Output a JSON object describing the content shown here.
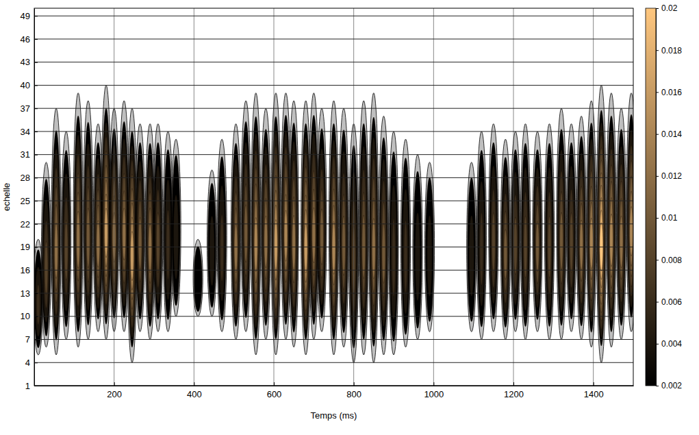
{
  "chart_data": {
    "type": "scalogram",
    "x_label": "Temps (ms)",
    "y_label": "echelle",
    "xlim": [
      0,
      1500
    ],
    "xticks": [
      200,
      400,
      600,
      800,
      1000,
      1200,
      1400
    ],
    "ylim": [
      1,
      50
    ],
    "yticks": [
      1,
      4,
      7,
      10,
      13,
      16,
      19,
      22,
      25,
      28,
      31,
      34,
      37,
      40,
      43,
      46,
      49
    ],
    "grid": true,
    "bursts": [
      {
        "t": 10,
        "scale_min": 5,
        "scale_max": 20,
        "peak": 0.006
      },
      {
        "t": 30,
        "scale_min": 6,
        "scale_max": 30,
        "peak": 0.008
      },
      {
        "t": 55,
        "scale_min": 5,
        "scale_max": 37,
        "peak": 0.012
      },
      {
        "t": 80,
        "scale_min": 7,
        "scale_max": 34,
        "peak": 0.008
      },
      {
        "t": 110,
        "scale_min": 6,
        "scale_max": 39,
        "peak": 0.012
      },
      {
        "t": 135,
        "scale_min": 7,
        "scale_max": 38,
        "peak": 0.01
      },
      {
        "t": 160,
        "scale_min": 8,
        "scale_max": 35,
        "peak": 0.012
      },
      {
        "t": 180,
        "scale_min": 7,
        "scale_max": 40,
        "peak": 0.016
      },
      {
        "t": 200,
        "scale_min": 8,
        "scale_max": 37,
        "peak": 0.012
      },
      {
        "t": 225,
        "scale_min": 8,
        "scale_max": 38,
        "peak": 0.012
      },
      {
        "t": 245,
        "scale_min": 4,
        "scale_max": 37,
        "peak": 0.016
      },
      {
        "t": 265,
        "scale_min": 8,
        "scale_max": 35,
        "peak": 0.01
      },
      {
        "t": 290,
        "scale_min": 7,
        "scale_max": 35,
        "peak": 0.012
      },
      {
        "t": 310,
        "scale_min": 8,
        "scale_max": 35,
        "peak": 0.008
      },
      {
        "t": 335,
        "scale_min": 8,
        "scale_max": 34,
        "peak": 0.006
      },
      {
        "t": 355,
        "scale_min": 10,
        "scale_max": 33,
        "peak": 0.004
      },
      {
        "t": 410,
        "scale_min": 10,
        "scale_max": 20,
        "peak": 0.002
      },
      {
        "t": 445,
        "scale_min": 10,
        "scale_max": 29,
        "peak": 0.004
      },
      {
        "t": 470,
        "scale_min": 8,
        "scale_max": 33,
        "peak": 0.006
      },
      {
        "t": 505,
        "scale_min": 7,
        "scale_max": 35,
        "peak": 0.012
      },
      {
        "t": 530,
        "scale_min": 8,
        "scale_max": 38,
        "peak": 0.01
      },
      {
        "t": 555,
        "scale_min": 5,
        "scale_max": 39,
        "peak": 0.014
      },
      {
        "t": 580,
        "scale_min": 7,
        "scale_max": 37,
        "peak": 0.012
      },
      {
        "t": 605,
        "scale_min": 5,
        "scale_max": 39,
        "peak": 0.016
      },
      {
        "t": 630,
        "scale_min": 7,
        "scale_max": 39,
        "peak": 0.014
      },
      {
        "t": 650,
        "scale_min": 6,
        "scale_max": 38,
        "peak": 0.012
      },
      {
        "t": 680,
        "scale_min": 5,
        "scale_max": 38,
        "peak": 0.016
      },
      {
        "t": 700,
        "scale_min": 7,
        "scale_max": 39,
        "peak": 0.012
      },
      {
        "t": 720,
        "scale_min": 8,
        "scale_max": 37,
        "peak": 0.01
      },
      {
        "t": 750,
        "scale_min": 5,
        "scale_max": 38,
        "peak": 0.014
      },
      {
        "t": 775,
        "scale_min": 6,
        "scale_max": 37,
        "peak": 0.01
      },
      {
        "t": 800,
        "scale_min": 4,
        "scale_max": 35,
        "peak": 0.008
      },
      {
        "t": 825,
        "scale_min": 5,
        "scale_max": 38,
        "peak": 0.01
      },
      {
        "t": 850,
        "scale_min": 4,
        "scale_max": 39,
        "peak": 0.012
      },
      {
        "t": 875,
        "scale_min": 5,
        "scale_max": 36,
        "peak": 0.01
      },
      {
        "t": 900,
        "scale_min": 5,
        "scale_max": 34,
        "peak": 0.006
      },
      {
        "t": 930,
        "scale_min": 6,
        "scale_max": 33,
        "peak": 0.006
      },
      {
        "t": 960,
        "scale_min": 7,
        "scale_max": 31,
        "peak": 0.004
      },
      {
        "t": 990,
        "scale_min": 8,
        "scale_max": 30,
        "peak": 0.004
      },
      {
        "t": 1095,
        "scale_min": 8,
        "scale_max": 30,
        "peak": 0.004
      },
      {
        "t": 1120,
        "scale_min": 7,
        "scale_max": 34,
        "peak": 0.006
      },
      {
        "t": 1150,
        "scale_min": 8,
        "scale_max": 35,
        "peak": 0.008
      },
      {
        "t": 1180,
        "scale_min": 7,
        "scale_max": 33,
        "peak": 0.01
      },
      {
        "t": 1205,
        "scale_min": 8,
        "scale_max": 34,
        "peak": 0.008
      },
      {
        "t": 1230,
        "scale_min": 7,
        "scale_max": 35,
        "peak": 0.008
      },
      {
        "t": 1260,
        "scale_min": 8,
        "scale_max": 34,
        "peak": 0.01
      },
      {
        "t": 1290,
        "scale_min": 7,
        "scale_max": 35,
        "peak": 0.008
      },
      {
        "t": 1320,
        "scale_min": 7,
        "scale_max": 37,
        "peak": 0.01
      },
      {
        "t": 1345,
        "scale_min": 8,
        "scale_max": 35,
        "peak": 0.008
      },
      {
        "t": 1370,
        "scale_min": 7,
        "scale_max": 36,
        "peak": 0.012
      },
      {
        "t": 1395,
        "scale_min": 6,
        "scale_max": 38,
        "peak": 0.014
      },
      {
        "t": 1420,
        "scale_min": 4,
        "scale_max": 40,
        "peak": 0.02
      },
      {
        "t": 1445,
        "scale_min": 6,
        "scale_max": 39,
        "peak": 0.014
      },
      {
        "t": 1470,
        "scale_min": 7,
        "scale_max": 37,
        "peak": 0.012
      },
      {
        "t": 1495,
        "scale_min": 8,
        "scale_max": 39,
        "peak": 0.014
      }
    ],
    "colorbar": {
      "range": [
        0.002,
        0.02
      ],
      "ticks": [
        0.002,
        0.004,
        0.006,
        0.008,
        0.01,
        0.012,
        0.014,
        0.016,
        0.018,
        0.02
      ]
    }
  }
}
